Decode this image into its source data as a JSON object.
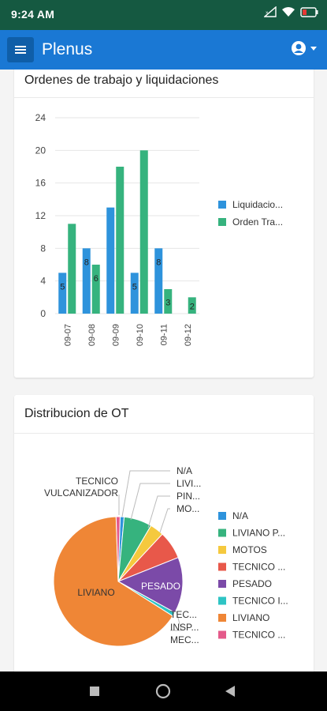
{
  "status_bar": {
    "time": "9:24 AM"
  },
  "app_bar": {
    "title": "Plenus"
  },
  "cards": [
    {
      "title": "Ordenes de trabajo y liquidaciones"
    },
    {
      "title": "Distribucion de OT"
    }
  ],
  "colors": {
    "blue": "#2e93dc",
    "green": "#36b37e",
    "status_bar": "#155941",
    "app_bar": "#1a78d4"
  },
  "chart_data": [
    {
      "type": "bar",
      "categories": [
        "09-07",
        "09-08",
        "09-09",
        "09-10",
        "09-11",
        "09-12"
      ],
      "series": [
        {
          "name": "Liquidacio...",
          "color": "#2e93dc",
          "values": [
            5,
            8,
            13,
            5,
            8,
            0
          ],
          "labels": [
            "5",
            "8",
            "",
            "5",
            "8",
            ""
          ]
        },
        {
          "name": "Orden Tra...",
          "color": "#36b37e",
          "values": [
            11,
            6,
            18,
            20,
            3,
            2
          ],
          "labels": [
            "",
            "6",
            "",
            "",
            "3",
            "2"
          ]
        }
      ],
      "yticks": [
        "0",
        "4",
        "8",
        "12",
        "16",
        "20",
        "24"
      ],
      "ylim": [
        0,
        24
      ],
      "grid": true,
      "legend": "right"
    },
    {
      "type": "pie",
      "slices": [
        {
          "name": "N/A",
          "value": 1,
          "color": "#2e93dc"
        },
        {
          "name": "LIVIANO P...",
          "value": 7,
          "color": "#36b37e"
        },
        {
          "name": "MOTOS",
          "value": 3.5,
          "color": "#f5c93e"
        },
        {
          "name": "TECNICO ...",
          "value": 7,
          "color": "#e8584a"
        },
        {
          "name": "PESADO",
          "value": 14,
          "color": "#7b4aa8"
        },
        {
          "name": "TECNICO I...",
          "value": 1,
          "color": "#2ec4c4"
        },
        {
          "name": "LIVIANO",
          "value": 65.5,
          "color": "#ef8636"
        },
        {
          "name": "TECNICO ...",
          "value": 1,
          "color": "#e45a8a"
        }
      ],
      "callouts": {
        "left": [
          "TECNICO",
          "VULCANIZADOR"
        ],
        "top_right": [
          "N/A",
          "LIVI...",
          "PIN...",
          "MO..."
        ],
        "bottom_right": [
          "TEC...",
          "INSP...",
          "MEC..."
        ],
        "inside": [
          "PESADO",
          "LIVIANO"
        ]
      },
      "legend": "right"
    }
  ]
}
